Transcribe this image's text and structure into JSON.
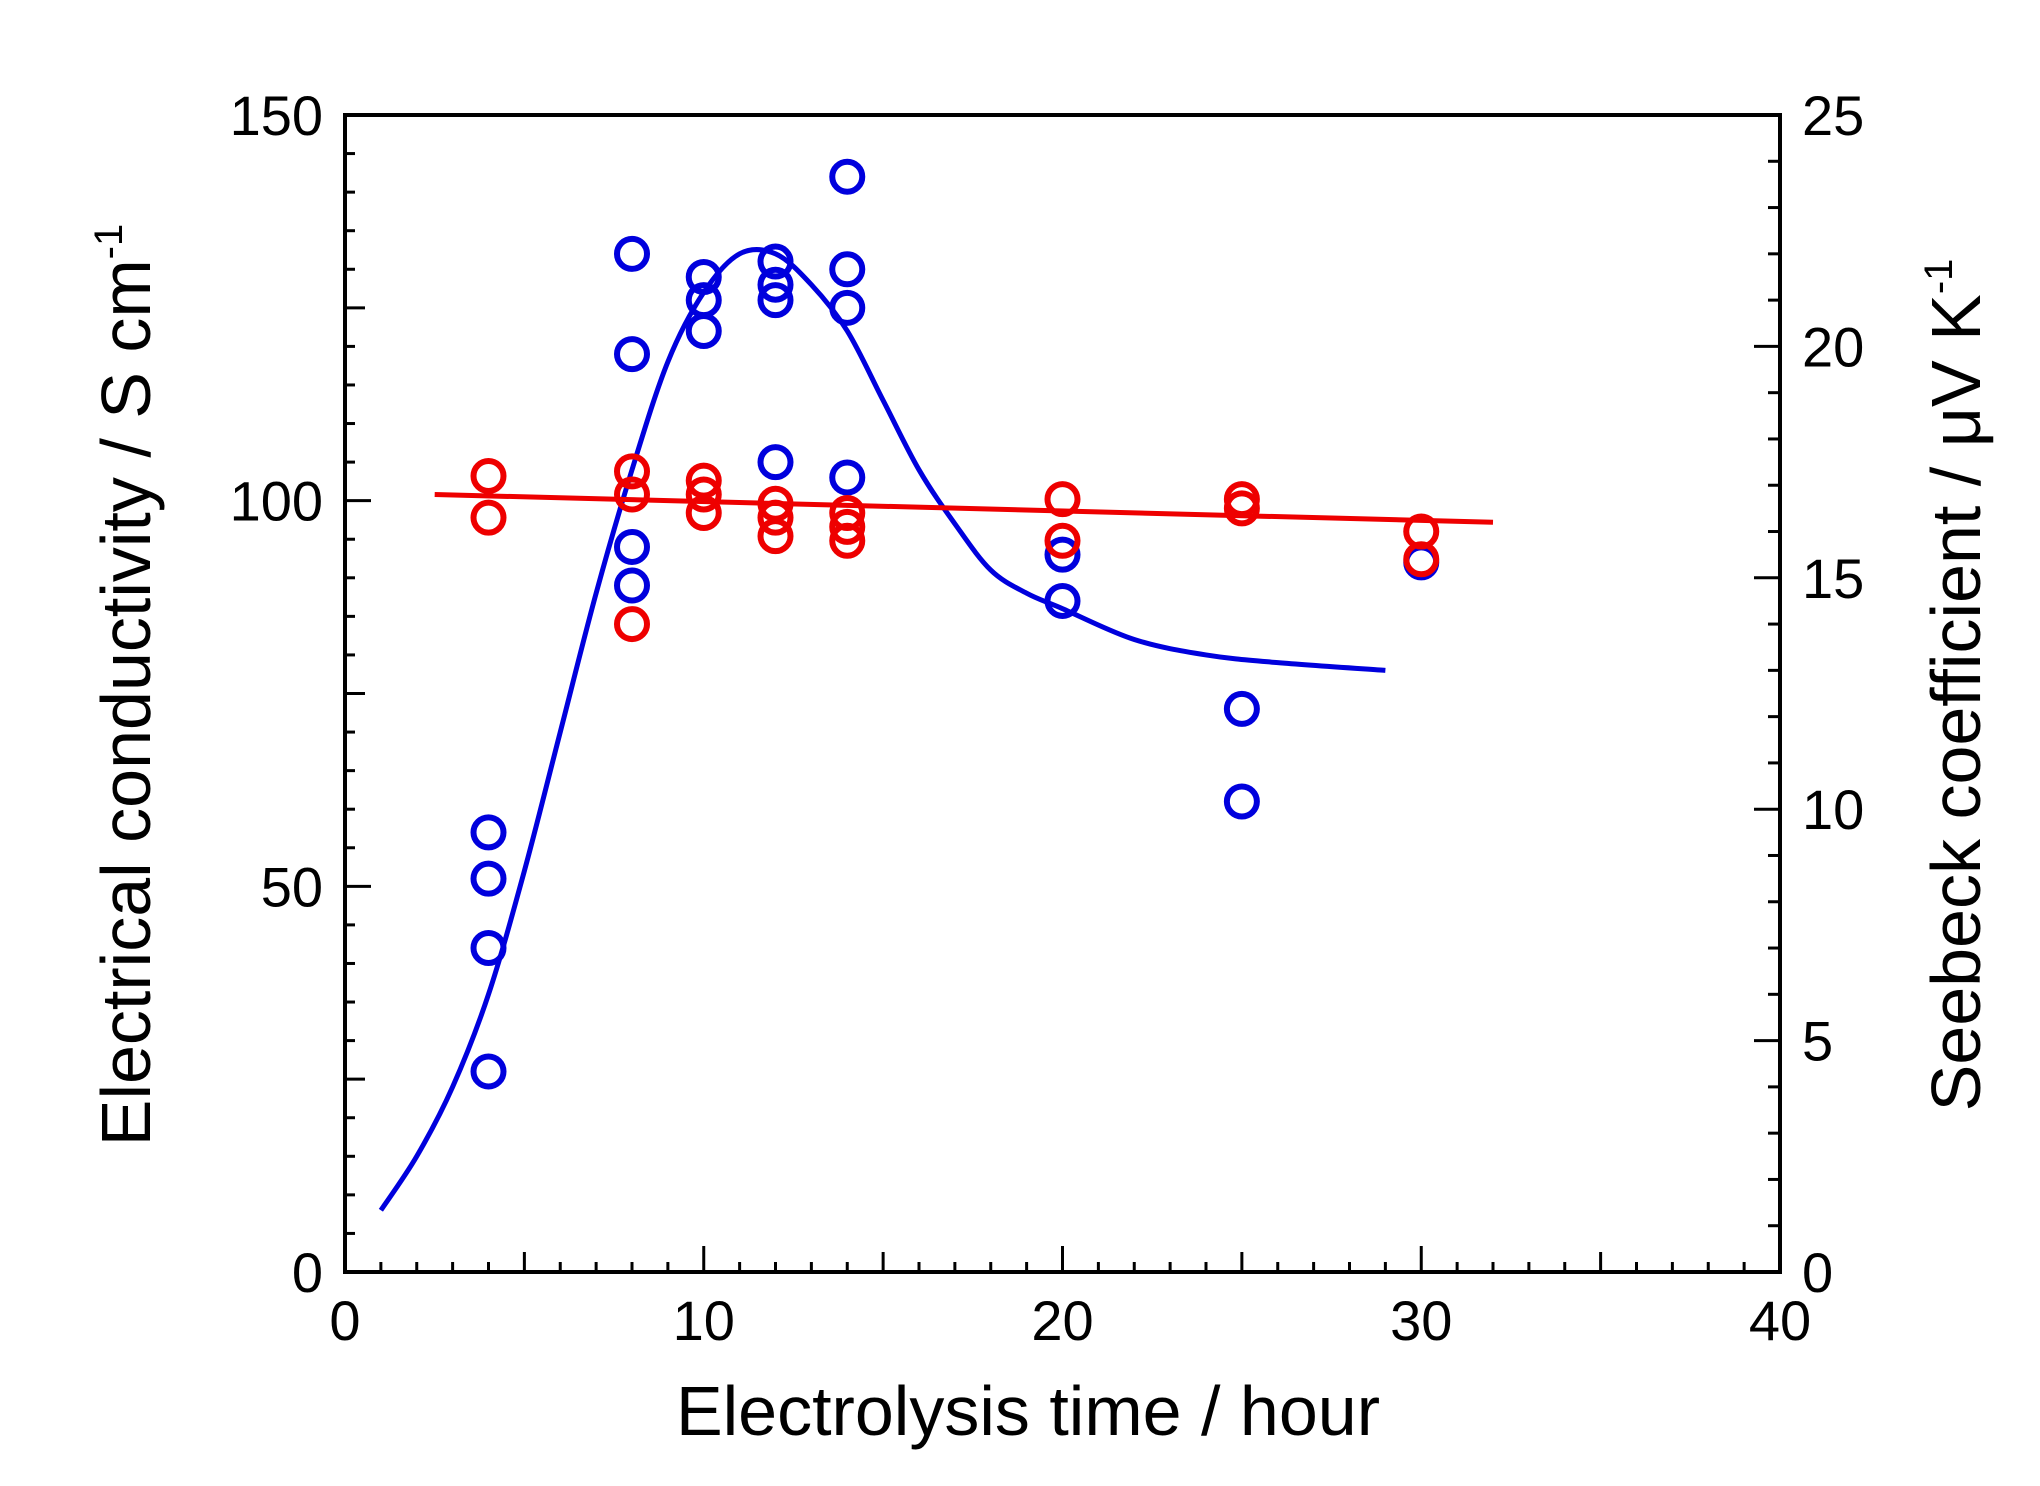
{
  "chart_data": {
    "type": "scatter",
    "title": "",
    "xlabel": "Electrolysis time / hour",
    "ylabel_left": {
      "main": "Electrical conductivity / S cm",
      "sup": "-1"
    },
    "ylabel_right": {
      "main": "Seebeck coefficient / μV K",
      "sup": "-1"
    },
    "xlim": [
      0,
      40
    ],
    "ylim_left": [
      0,
      150
    ],
    "ylim_right": [
      0,
      25
    ],
    "x_ticks": [
      0,
      10,
      20,
      30,
      40
    ],
    "y_left_ticks": [
      0,
      50,
      100,
      150
    ],
    "y_right_ticks": [
      0,
      5,
      10,
      15,
      20,
      25
    ],
    "grid": false,
    "series": [
      {
        "name": "Electrical conductivity",
        "axis": "left",
        "color": "#0000dd",
        "marker": "open-circle",
        "points": [
          [
            4,
            57
          ],
          [
            4,
            51
          ],
          [
            4,
            42
          ],
          [
            4,
            26
          ],
          [
            8,
            132
          ],
          [
            8,
            119
          ],
          [
            8,
            94
          ],
          [
            8,
            89
          ],
          [
            10,
            129
          ],
          [
            10,
            126
          ],
          [
            10,
            122
          ],
          [
            12,
            131
          ],
          [
            12,
            128
          ],
          [
            12,
            126
          ],
          [
            12,
            105
          ],
          [
            14,
            142
          ],
          [
            14,
            130
          ],
          [
            14,
            125
          ],
          [
            14,
            103
          ],
          [
            20,
            93
          ],
          [
            20,
            87
          ],
          [
            25,
            73
          ],
          [
            25,
            61
          ],
          [
            30,
            92
          ]
        ],
        "fit_curve": [
          [
            1,
            8
          ],
          [
            2,
            15
          ],
          [
            3,
            24
          ],
          [
            4,
            36
          ],
          [
            5,
            52
          ],
          [
            6,
            70
          ],
          [
            7,
            88
          ],
          [
            8,
            104
          ],
          [
            9,
            118
          ],
          [
            10,
            127
          ],
          [
            11,
            132
          ],
          [
            12,
            132
          ],
          [
            13,
            128
          ],
          [
            14,
            122
          ],
          [
            15,
            113
          ],
          [
            16,
            104
          ],
          [
            17,
            97
          ],
          [
            18,
            91
          ],
          [
            19,
            88
          ],
          [
            20,
            86
          ],
          [
            22,
            82
          ],
          [
            24,
            80
          ],
          [
            26,
            79
          ],
          [
            29,
            78
          ]
        ]
      },
      {
        "name": "Seebeck coefficient",
        "axis": "right",
        "color": "#ee0000",
        "marker": "open-circle",
        "points": [
          [
            4,
            17.2
          ],
          [
            4,
            16.3
          ],
          [
            8,
            17.3
          ],
          [
            8,
            16.8
          ],
          [
            8,
            14.0
          ],
          [
            10,
            17.1
          ],
          [
            10,
            16.8
          ],
          [
            10,
            16.4
          ],
          [
            12,
            16.6
          ],
          [
            12,
            16.3
          ],
          [
            12,
            15.9
          ],
          [
            14,
            16.4
          ],
          [
            14,
            16.1
          ],
          [
            14,
            15.8
          ],
          [
            20,
            16.7
          ],
          [
            20,
            15.8
          ],
          [
            25,
            16.7
          ],
          [
            25,
            16.5
          ],
          [
            30,
            16.0
          ],
          [
            30,
            15.4
          ]
        ],
        "fit_curve": [
          [
            2.5,
            16.8
          ],
          [
            32,
            16.2
          ]
        ]
      }
    ]
  }
}
